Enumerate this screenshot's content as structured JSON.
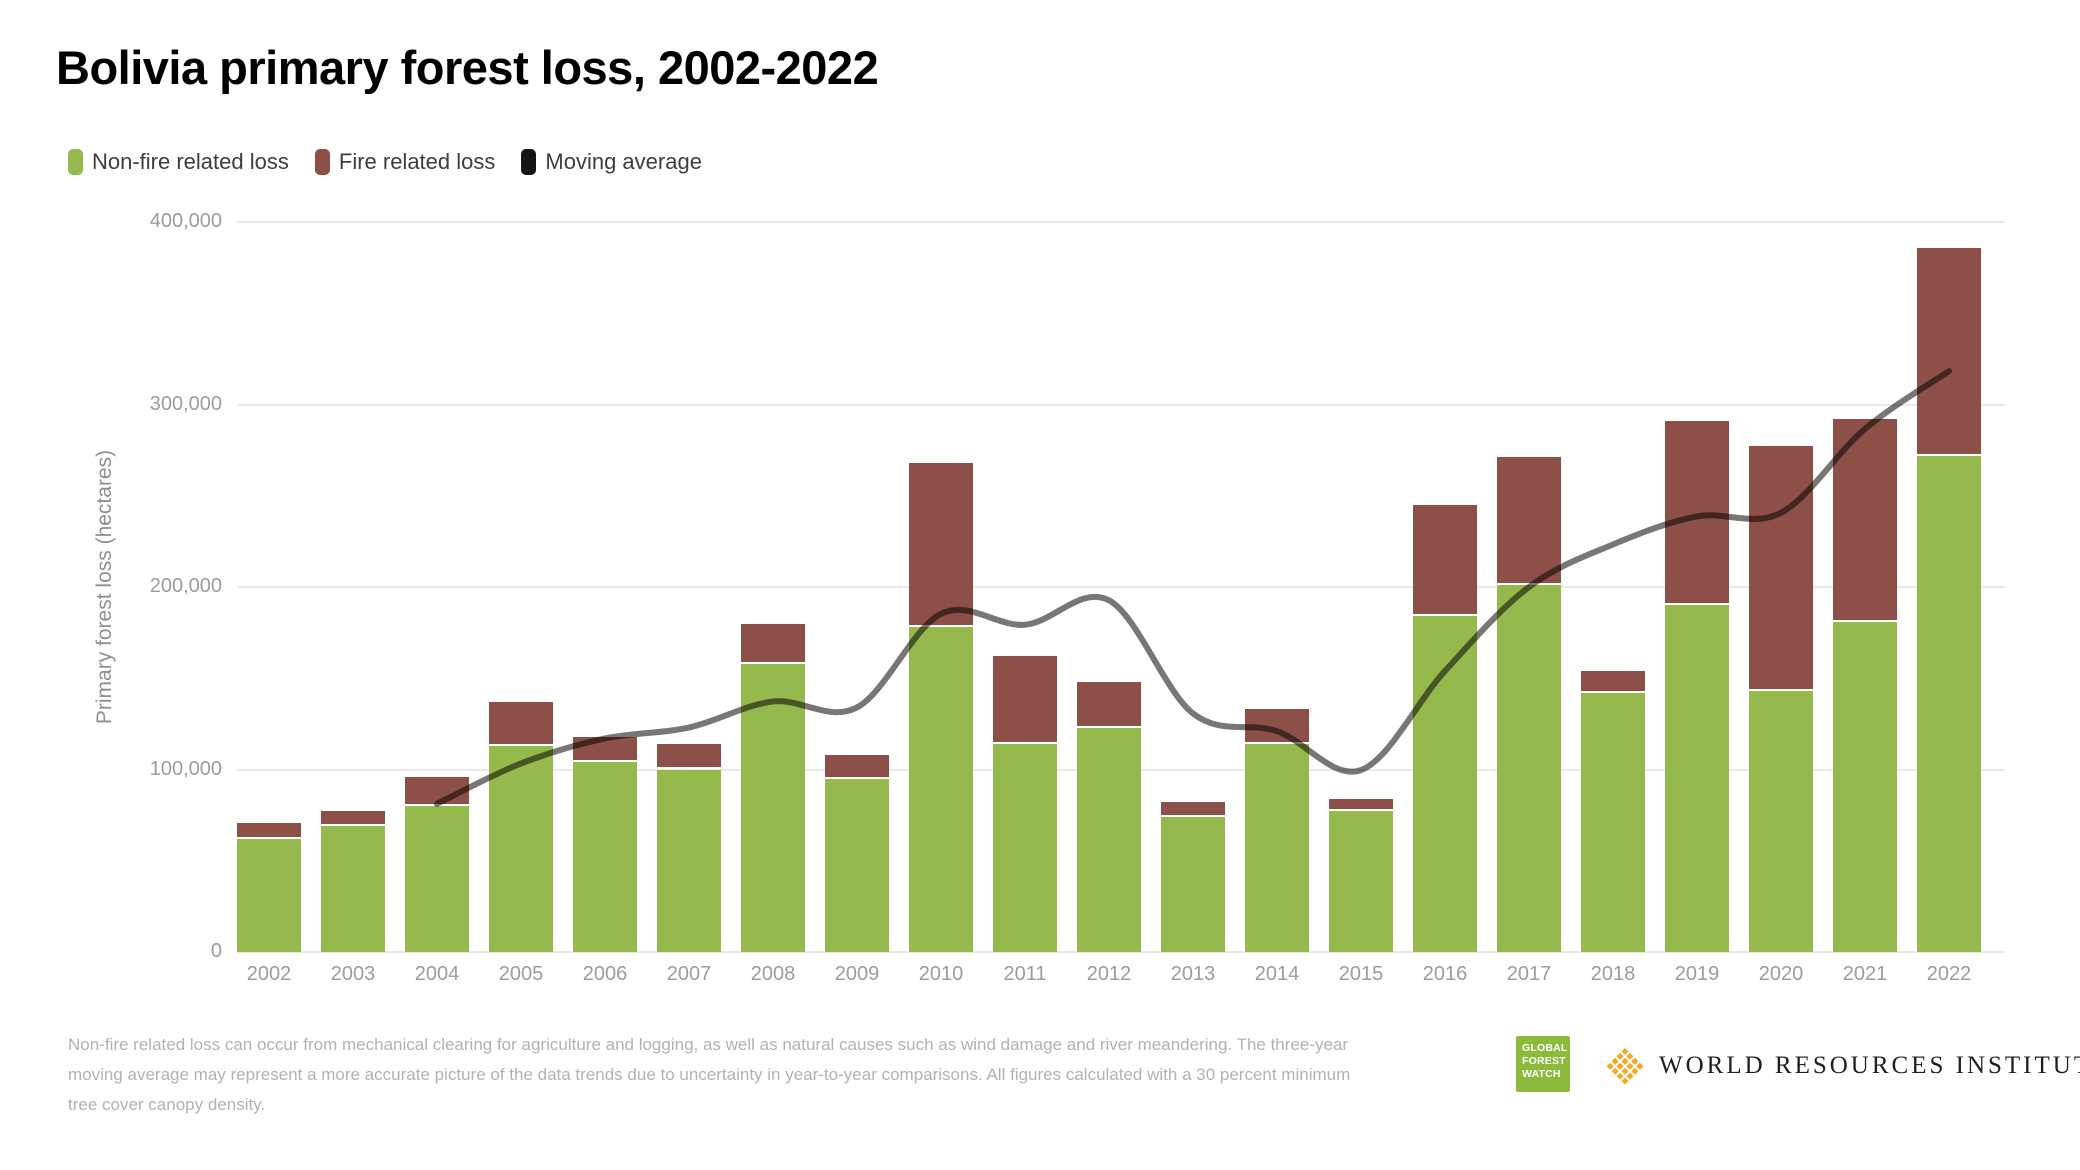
{
  "title": "Bolivia primary forest loss, 2002-2022",
  "legend": [
    {
      "label": "Non-fire related loss",
      "color": "#95B94D"
    },
    {
      "label": "Fire related loss",
      "color": "#8C5048"
    },
    {
      "label": "Moving average",
      "color": "#141414"
    }
  ],
  "chart_data": {
    "type": "bar",
    "stacked": true,
    "title": "Bolivia primary forest loss, 2002-2022",
    "xlabel": "",
    "ylabel": "Primary forest loss (hectares)",
    "ylim": [
      0,
      400000
    ],
    "yticks": [
      0,
      100000,
      200000,
      300000,
      400000
    ],
    "ytick_labels": [
      "0",
      "100,000",
      "200,000",
      "300,000",
      "400,000"
    ],
    "grid": true,
    "legend_position": "top",
    "categories": [
      2002,
      2003,
      2004,
      2005,
      2006,
      2007,
      2008,
      2009,
      2010,
      2011,
      2012,
      2013,
      2014,
      2015,
      2016,
      2017,
      2018,
      2019,
      2020,
      2021,
      2022
    ],
    "series": [
      {
        "name": "Non-fire related loss",
        "type": "bar",
        "color": "#95B94D",
        "values": [
          62000,
          69000,
          80000,
          113000,
          104000,
          100000,
          158000,
          95000,
          178000,
          114000,
          123000,
          74000,
          114000,
          77000,
          184000,
          201000,
          142000,
          190000,
          143000,
          181000,
          272000
        ]
      },
      {
        "name": "Fire related loss",
        "type": "bar",
        "color": "#8C5048",
        "values": [
          8500,
          8000,
          16000,
          24000,
          14000,
          14000,
          22000,
          13000,
          90000,
          48000,
          25000,
          8000,
          19000,
          7000,
          61000,
          70000,
          12000,
          101000,
          134000,
          111000,
          114000
        ]
      },
      {
        "name": "Moving average",
        "type": "line",
        "color": "#55504B",
        "values": [
          null,
          null,
          81200,
          103300,
          117000,
          123000,
          137300,
          134000,
          185300,
          179300,
          192700,
          130700,
          121000,
          99700,
          154000,
          200000,
          223300,
          238700,
          240700,
          286700,
          318300
        ]
      }
    ]
  },
  "footnote_lines": [
    "Non-fire related loss can occur from mechanical clearing for agriculture and logging, as well as natural causes such as wind damage and river meandering. The three-year",
    "moving average may represent a more accurate picture of the data trends due to uncertainty in year-to-year comparisons. All figures calculated with a 30 percent minimum",
    "tree cover canopy density."
  ],
  "logos": {
    "gfw_lines": [
      "GLOBAL",
      "FOREST",
      "WATCH"
    ],
    "gfw_color": "#8CBA3B",
    "wri_icon_color": "#F7A823",
    "wri_text": "WORLD RESOURCES INSTITUTE"
  }
}
